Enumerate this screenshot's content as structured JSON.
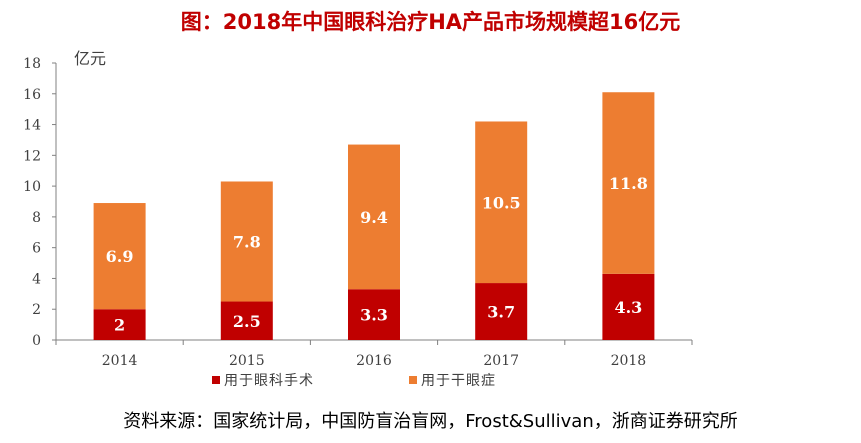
{
  "title": "图：2018年中国眼科治疗HA产品市场规模超16亿元",
  "source": "资料来源：国家统计局，中国防盲治盲网，Frost&Sullivan，浙商证券研究所",
  "colors": {
    "title": "#c00000",
    "series_surgery": "#c00000",
    "series_dryeye": "#ed7d31"
  },
  "chart_data": {
    "type": "bar",
    "stacked": true,
    "ylabel": "亿元",
    "ylim": [
      0,
      18
    ],
    "yticks": [
      0,
      2,
      4,
      6,
      8,
      10,
      12,
      14,
      16,
      18
    ],
    "categories": [
      "2014",
      "2015",
      "2016",
      "2017",
      "2018"
    ],
    "series": [
      {
        "name": "用于眼科手术",
        "values": [
          2,
          2.5,
          3.3,
          3.7,
          4.3
        ],
        "labels": [
          "2",
          "2.5",
          "3.3",
          "3.7",
          "4.3"
        ],
        "color": "#c00000"
      },
      {
        "name": "用于干眼症",
        "values": [
          6.9,
          7.8,
          9.4,
          10.5,
          11.8
        ],
        "labels": [
          "6.9",
          "7.8",
          "9.4",
          "10.5",
          "11.8"
        ],
        "color": "#ed7d31"
      }
    ],
    "grid": false,
    "legend": "bottom"
  }
}
